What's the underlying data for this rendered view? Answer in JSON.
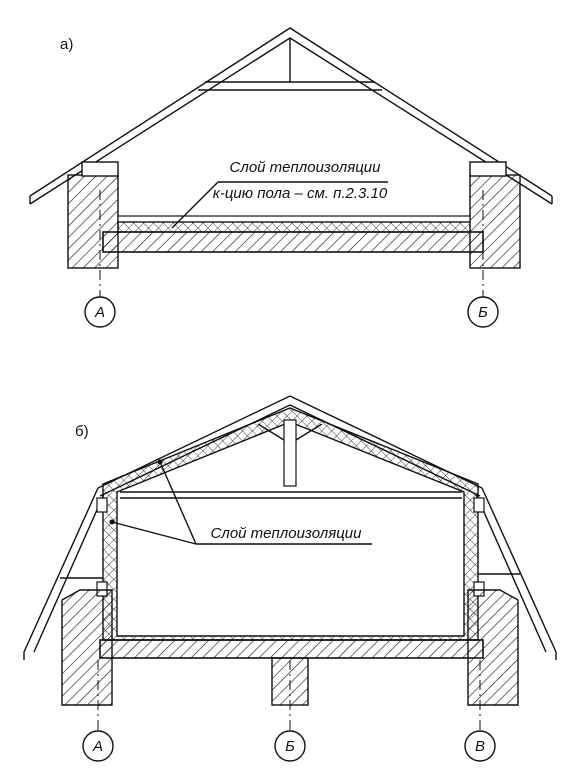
{
  "figure_a": {
    "label": "а)",
    "callout": [
      "Слой теплоизоляции",
      "к-цию пола – см. п.2.3.10"
    ],
    "axes": [
      "А",
      "Б"
    ]
  },
  "figure_b": {
    "label": "б)",
    "callout": "Слой теплоизоляции",
    "axes": [
      "А",
      "Б",
      "В"
    ]
  }
}
